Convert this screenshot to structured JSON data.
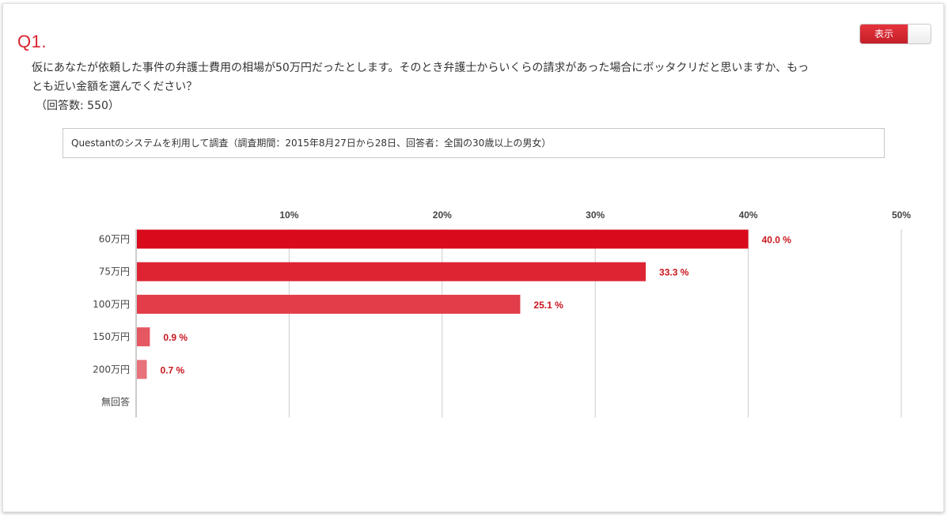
{
  "toggle": {
    "label": "表示"
  },
  "question": {
    "number": "Q1.",
    "text": "仮にあなたが依頼した事件の弁護士費用の相場が50万円だったとします。そのとき弁護士からいくらの請求があった場合にボッタクリだと思いますか、もっとも近い金額を選んでください？",
    "count": "（回答数: 550）"
  },
  "note": "Questantのシステムを利用して調査（調査期間：2015年8月27日から28日、回答者：全国の30歳以上の男女）",
  "chart_data": {
    "type": "bar",
    "orientation": "horizontal",
    "categories": [
      "60万円",
      "75万円",
      "100万円",
      "150万円",
      "200万円",
      "無回答"
    ],
    "values": [
      40.0,
      33.3,
      25.1,
      0.9,
      0.7,
      0
    ],
    "value_labels": [
      "40.0 %",
      "33.3 %",
      "25.1 %",
      "0.9 %",
      "0.7 %",
      ""
    ],
    "ticks": [
      "10%",
      "20%",
      "30%",
      "40%",
      "50%"
    ],
    "tick_values": [
      10,
      20,
      30,
      40,
      50
    ],
    "xlim": [
      0,
      50
    ],
    "axis_position": "top",
    "grid": true,
    "bar_colors": [
      "#d90a1c",
      "#de2433",
      "#e23d49",
      "#e55862",
      "#e8727b",
      "#eb8c94"
    ],
    "label_color": "#c8161e"
  }
}
